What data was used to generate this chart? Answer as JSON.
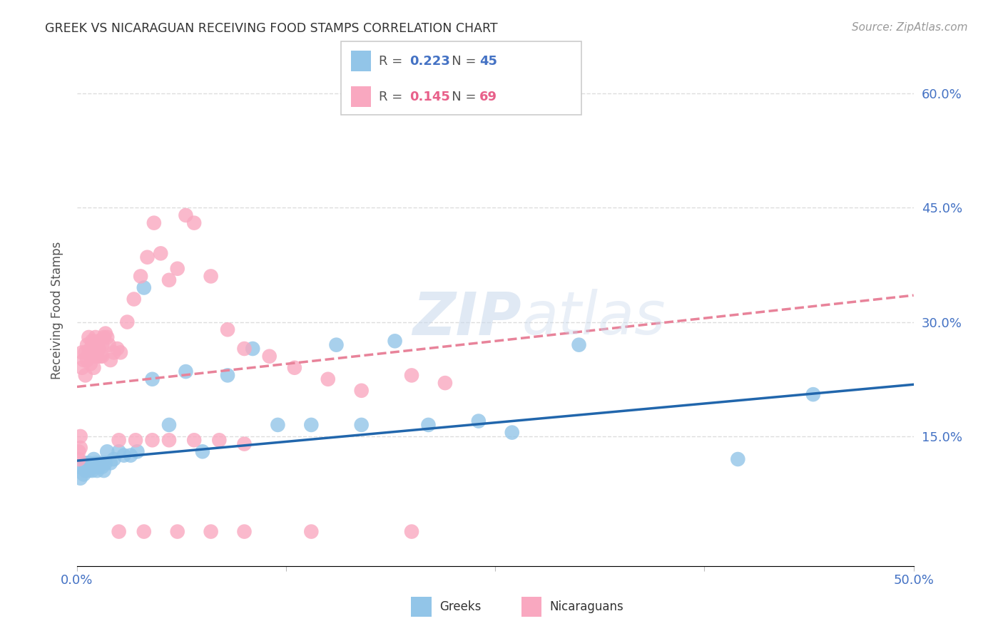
{
  "title": "GREEK VS NICARAGUAN RECEIVING FOOD STAMPS CORRELATION CHART",
  "source": "Source: ZipAtlas.com",
  "ylabel": "Receiving Food Stamps",
  "xlim": [
    0.0,
    0.5
  ],
  "ylim": [
    -0.02,
    0.65
  ],
  "greek_color": "#92C5E8",
  "nicaraguan_color": "#F9A8C0",
  "greek_line_color": "#2166AC",
  "nicaraguan_line_color": "#E8839A",
  "legend_greek_R": "0.223",
  "legend_greek_N": "45",
  "legend_nicaraguan_R": "0.145",
  "legend_nicaraguan_N": "69",
  "greek_R_color": "#4472C4",
  "greek_N_color": "#4472C4",
  "nicaraguan_R_color": "#E8608A",
  "nicaraguan_N_color": "#E8608A",
  "background_color": "#FFFFFF",
  "grid_color": "#DDDDDD",
  "greek_x": [
    0.001,
    0.002,
    0.003,
    0.004,
    0.005,
    0.005,
    0.006,
    0.007,
    0.007,
    0.008,
    0.009,
    0.01,
    0.01,
    0.011,
    0.012,
    0.013,
    0.014,
    0.015,
    0.016,
    0.017,
    0.018,
    0.02,
    0.022,
    0.025,
    0.028,
    0.032,
    0.036,
    0.04,
    0.045,
    0.055,
    0.065,
    0.075,
    0.09,
    0.105,
    0.12,
    0.14,
    0.155,
    0.17,
    0.19,
    0.21,
    0.24,
    0.26,
    0.3,
    0.395,
    0.44
  ],
  "greek_y": [
    0.11,
    0.095,
    0.11,
    0.1,
    0.105,
    0.115,
    0.11,
    0.105,
    0.115,
    0.11,
    0.105,
    0.11,
    0.12,
    0.115,
    0.105,
    0.11,
    0.115,
    0.11,
    0.105,
    0.115,
    0.13,
    0.115,
    0.12,
    0.13,
    0.125,
    0.125,
    0.13,
    0.345,
    0.225,
    0.165,
    0.235,
    0.13,
    0.23,
    0.265,
    0.165,
    0.165,
    0.27,
    0.165,
    0.275,
    0.165,
    0.17,
    0.155,
    0.27,
    0.12,
    0.205
  ],
  "nicaraguan_x": [
    0.001,
    0.001,
    0.002,
    0.002,
    0.003,
    0.003,
    0.004,
    0.005,
    0.005,
    0.006,
    0.006,
    0.007,
    0.007,
    0.008,
    0.008,
    0.009,
    0.009,
    0.01,
    0.01,
    0.011,
    0.011,
    0.012,
    0.012,
    0.013,
    0.013,
    0.014,
    0.015,
    0.015,
    0.016,
    0.017,
    0.018,
    0.019,
    0.02,
    0.022,
    0.024,
    0.026,
    0.03,
    0.034,
    0.038,
    0.042,
    0.046,
    0.05,
    0.055,
    0.06,
    0.065,
    0.07,
    0.08,
    0.09,
    0.1,
    0.115,
    0.13,
    0.15,
    0.17,
    0.2,
    0.22,
    0.025,
    0.035,
    0.045,
    0.055,
    0.07,
    0.085,
    0.1,
    0.025,
    0.04,
    0.06,
    0.08,
    0.1,
    0.14,
    0.2
  ],
  "nicaraguan_y": [
    0.12,
    0.13,
    0.135,
    0.15,
    0.24,
    0.26,
    0.25,
    0.23,
    0.26,
    0.25,
    0.27,
    0.26,
    0.28,
    0.245,
    0.265,
    0.26,
    0.275,
    0.24,
    0.255,
    0.265,
    0.28,
    0.255,
    0.265,
    0.265,
    0.275,
    0.255,
    0.255,
    0.27,
    0.28,
    0.285,
    0.28,
    0.27,
    0.25,
    0.26,
    0.265,
    0.26,
    0.3,
    0.33,
    0.36,
    0.385,
    0.43,
    0.39,
    0.355,
    0.37,
    0.44,
    0.43,
    0.36,
    0.29,
    0.265,
    0.255,
    0.24,
    0.225,
    0.21,
    0.23,
    0.22,
    0.145,
    0.145,
    0.145,
    0.145,
    0.145,
    0.145,
    0.14,
    0.025,
    0.025,
    0.025,
    0.025,
    0.025,
    0.025,
    0.025
  ],
  "greek_line_start_y": 0.118,
  "greek_line_end_y": 0.218,
  "nicaraguan_line_start_y": 0.215,
  "nicaraguan_line_end_y": 0.335,
  "yticks": [
    0.15,
    0.3,
    0.45,
    0.6
  ],
  "ytick_labels_right": [
    "15.0%",
    "30.0%",
    "45.0%",
    "60.0%"
  ]
}
